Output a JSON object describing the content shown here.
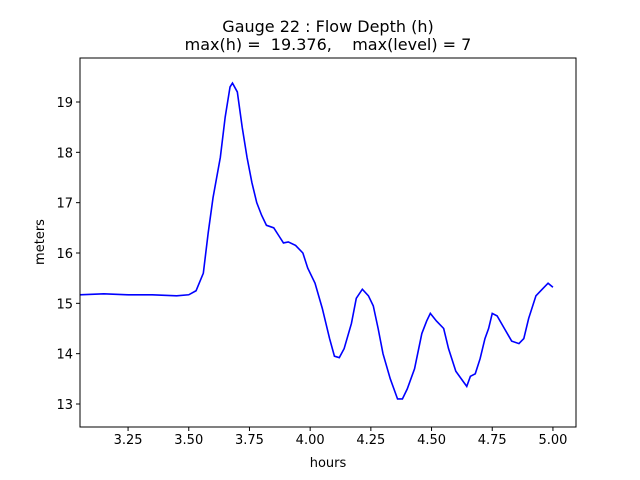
{
  "chart_data": {
    "type": "line",
    "title": "Gauge 22 : Flow Depth (h)",
    "subtitle": "max(h) =  19.376,    max(level) = 7",
    "xlabel": "hours",
    "ylabel": "meters",
    "xlim": [
      3.052,
      5.095
    ],
    "ylim": [
      12.543,
      19.874
    ],
    "xticks": [
      3.25,
      {
        "value": 3.5,
        "label": "3.50"
      },
      3.75,
      {
        "value": 4,
        "label": "4.00"
      },
      4.25,
      {
        "value": 4.5,
        "label": "4.50"
      },
      4.75,
      {
        "value": 5,
        "label": "5.00"
      }
    ],
    "yticks": [
      13,
      14,
      15,
      16,
      17,
      18,
      19
    ],
    "grid": false,
    "series": [
      {
        "color": "#0000ff",
        "x": [
          3.05,
          3.15,
          3.25,
          3.35,
          3.45,
          3.5,
          3.53,
          3.56,
          3.58,
          3.6,
          3.63,
          3.65,
          3.67,
          3.68,
          3.7,
          3.72,
          3.74,
          3.76,
          3.78,
          3.8,
          3.82,
          3.85,
          3.87,
          3.89,
          3.91,
          3.94,
          3.97,
          3.99,
          4.02,
          4.05,
          4.08,
          4.1,
          4.12,
          4.14,
          4.17,
          4.19,
          4.215,
          4.24,
          4.26,
          4.28,
          4.3,
          4.33,
          4.36,
          4.38,
          4.4,
          4.43,
          4.46,
          4.48,
          4.495,
          4.52,
          4.55,
          4.57,
          4.6,
          4.63,
          4.645,
          4.66,
          4.68,
          4.7,
          4.72,
          4.735,
          4.75,
          4.77,
          4.8,
          4.83,
          4.86,
          4.88,
          4.9,
          4.93,
          4.96,
          4.98,
          5.0
        ],
        "values": [
          15.17,
          15.19,
          15.17,
          15.17,
          15.15,
          15.17,
          15.25,
          15.6,
          16.4,
          17.1,
          17.9,
          18.7,
          19.3,
          19.376,
          19.2,
          18.5,
          17.9,
          17.4,
          17.0,
          16.75,
          16.55,
          16.5,
          16.35,
          16.2,
          16.22,
          16.15,
          16.0,
          15.7,
          15.4,
          14.9,
          14.3,
          13.95,
          13.92,
          14.1,
          14.6,
          15.1,
          15.28,
          15.15,
          14.95,
          14.5,
          14.0,
          13.5,
          13.1,
          13.1,
          13.3,
          13.7,
          14.4,
          14.65,
          14.8,
          14.65,
          14.5,
          14.1,
          13.65,
          13.45,
          13.35,
          13.55,
          13.6,
          13.9,
          14.3,
          14.5,
          14.8,
          14.75,
          14.5,
          14.25,
          14.2,
          14.3,
          14.7,
          15.15,
          15.3,
          15.4,
          15.32
        ]
      }
    ]
  }
}
